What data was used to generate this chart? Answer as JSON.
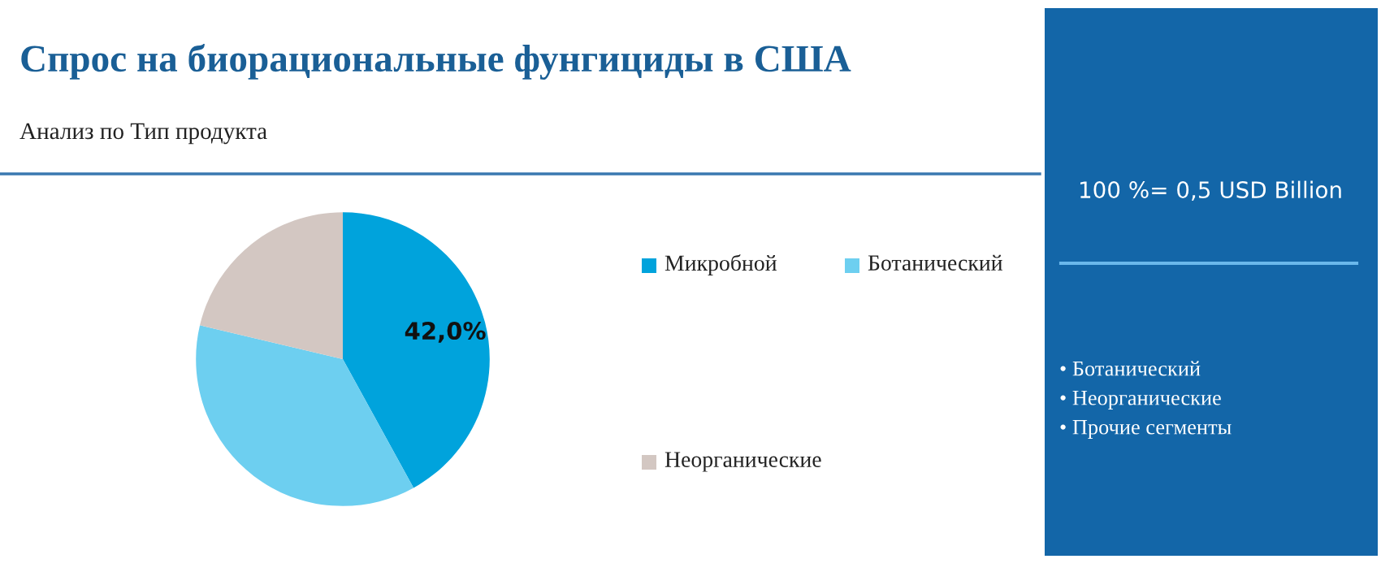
{
  "chart_data": {
    "type": "pie",
    "title": "Спрос на биорациональные фунгициды в США",
    "subtitle": "Анализ по Тип продукта",
    "categories": [
      "Микробной",
      "Ботанический",
      "Неорганические"
    ],
    "values": [
      42.0,
      36.7,
      21.3
    ],
    "colors": [
      "#00a3dc",
      "#6dcff0",
      "#d3c7c2"
    ],
    "value_labels": [
      "42,0%",
      null,
      null
    ],
    "legend": "right",
    "annotations": [
      "100 %= 0,5 USD Billion",
      "• Ботанический",
      "• Неорганические",
      "• Прочие сегменты"
    ]
  }
}
